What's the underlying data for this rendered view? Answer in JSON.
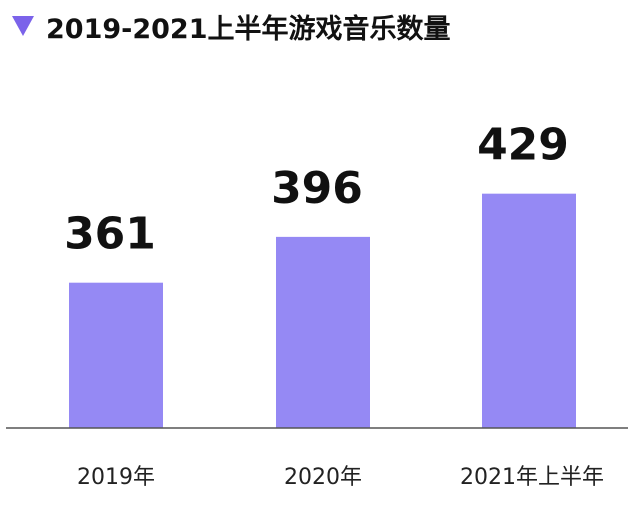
{
  "chart_data": {
    "type": "bar",
    "title": "2019-2021上半年游戏音乐数量",
    "categories": [
      "2019年",
      "2020年",
      "2021年上半年"
    ],
    "values": [
      361,
      396,
      429
    ],
    "ylim": [
      250,
      470
    ],
    "xlabel": "",
    "ylabel": "",
    "grid": false,
    "legend": "none",
    "colors": {
      "bar": "#9589f4",
      "marker": "#7b63ea",
      "axis": "#555555",
      "text": "#111111"
    }
  }
}
